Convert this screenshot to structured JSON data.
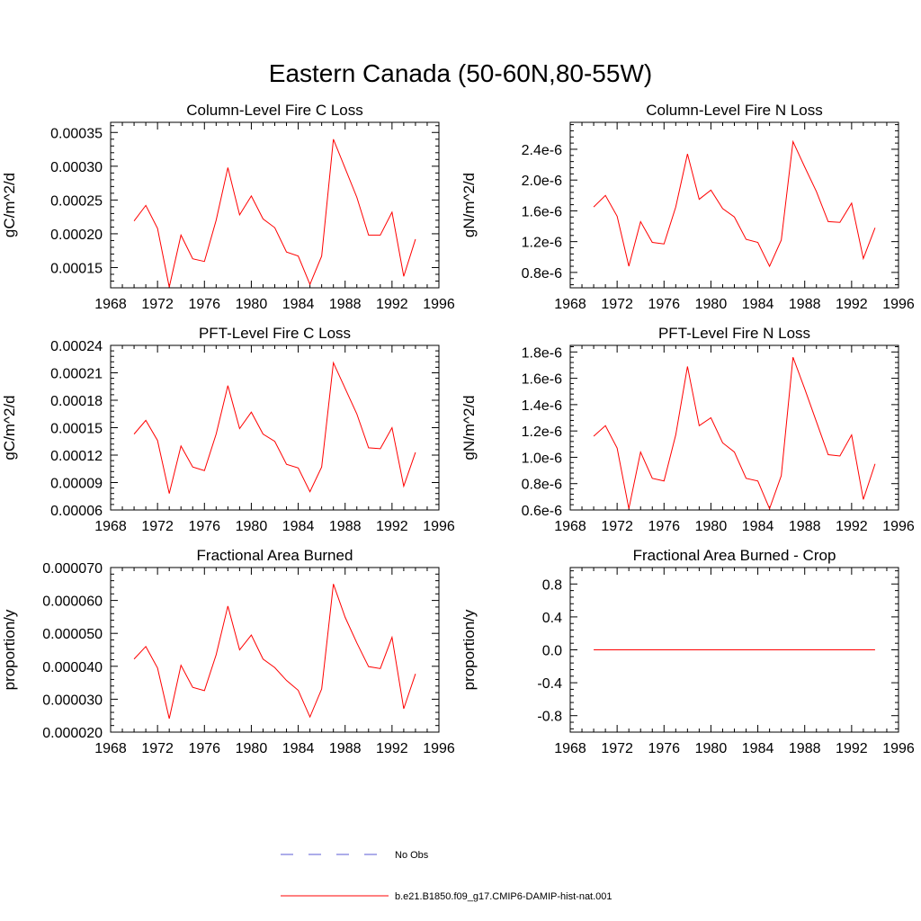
{
  "title": "Eastern Canada (50-60N,80-55W)",
  "colors": {
    "model": "#ff0000",
    "obs": "#5b5bd6",
    "axis": "#000000"
  },
  "legend": [
    {
      "label": "No Obs",
      "style": "dashed",
      "color": "#5b5bd6"
    },
    {
      "label": "b.e21.B1850.f09_g17.CMIP6-DAMIP-hist-nat.001",
      "style": "solid",
      "color": "#ff0000"
    }
  ],
  "chart_data": [
    {
      "type": "line",
      "title": "Column-Level Fire C Loss",
      "ylabel": "gC/m^2/d",
      "xlim": [
        1968,
        1996
      ],
      "xticks": [
        1968,
        1972,
        1976,
        1980,
        1984,
        1988,
        1992,
        1996
      ],
      "ylim": [
        0.00012,
        0.000365
      ],
      "yticks": [
        0.00015,
        0.0002,
        0.00025,
        0.0003,
        0.00035
      ],
      "ytick_labels": [
        "0.00015",
        "0.00020",
        "0.00025",
        "0.00030",
        "0.00035"
      ],
      "x": [
        1970,
        1971,
        1972,
        1973,
        1974,
        1975,
        1976,
        1977,
        1978,
        1979,
        1980,
        1981,
        1982,
        1983,
        1984,
        1985,
        1986,
        1987,
        1988,
        1989,
        1990,
        1991,
        1992,
        1993,
        1994
      ],
      "series": [
        {
          "name": "b.e21.B1850.f09_g17.CMIP6-DAMIP-hist-nat.001",
          "values": [
            0.000219,
            0.000242,
            0.000208,
            0.000121,
            0.000198,
            0.000163,
            0.000159,
            0.00022,
            0.000298,
            0.000228,
            0.000256,
            0.000222,
            0.000209,
            0.000173,
            0.000167,
            0.000125,
            0.000167,
            0.00034,
            0.000297,
            0.000254,
            0.000198,
            0.000198,
            0.000232,
            0.000137,
            0.000192
          ]
        }
      ]
    },
    {
      "type": "line",
      "title": "Column-Level Fire N Loss",
      "ylabel": "gN/m^2/d",
      "xlim": [
        1968,
        1996
      ],
      "xticks": [
        1968,
        1972,
        1976,
        1980,
        1984,
        1988,
        1992,
        1996
      ],
      "ylim": [
        6e-07,
        2.75e-06
      ],
      "yticks": [
        8e-07,
        1.2e-06,
        1.6e-06,
        2e-06,
        2.4e-06
      ],
      "ytick_labels": [
        "0.8e-6",
        "1.2e-6",
        "1.6e-6",
        "2.0e-6",
        "2.4e-6"
      ],
      "x": [
        1970,
        1971,
        1972,
        1973,
        1974,
        1975,
        1976,
        1977,
        1978,
        1979,
        1980,
        1981,
        1982,
        1983,
        1984,
        1985,
        1986,
        1987,
        1988,
        1989,
        1990,
        1991,
        1992,
        1993,
        1994
      ],
      "series": [
        {
          "name": "b.e21.B1850.f09_g17.CMIP6-DAMIP-hist-nat.001",
          "values": [
            1.65e-06,
            1.8e-06,
            1.53e-06,
            8.8e-07,
            1.46e-06,
            1.19e-06,
            1.17e-06,
            1.65e-06,
            2.34e-06,
            1.75e-06,
            1.87e-06,
            1.63e-06,
            1.52e-06,
            1.23e-06,
            1.19e-06,
            8.8e-07,
            1.22e-06,
            2.5e-06,
            2.17e-06,
            1.85e-06,
            1.46e-06,
            1.45e-06,
            1.7e-06,
            9.8e-07,
            1.38e-06
          ]
        }
      ]
    },
    {
      "type": "line",
      "title": "PFT-Level Fire C Loss",
      "ylabel": "gC/m^2/d",
      "xlim": [
        1968,
        1996
      ],
      "xticks": [
        1968,
        1972,
        1976,
        1980,
        1984,
        1988,
        1992,
        1996
      ],
      "ylim": [
        6e-05,
        0.00024
      ],
      "yticks": [
        6e-05,
        9e-05,
        0.00012,
        0.00015,
        0.00018,
        0.00021,
        0.00024
      ],
      "ytick_labels": [
        "0.00006",
        "0.00009",
        "0.00012",
        "0.00015",
        "0.00018",
        "0.00021",
        "0.00024"
      ],
      "x": [
        1970,
        1971,
        1972,
        1973,
        1974,
        1975,
        1976,
        1977,
        1978,
        1979,
        1980,
        1981,
        1982,
        1983,
        1984,
        1985,
        1986,
        1987,
        1988,
        1989,
        1990,
        1991,
        1992,
        1993,
        1994
      ],
      "series": [
        {
          "name": "b.e21.B1850.f09_g17.CMIP6-DAMIP-hist-nat.001",
          "values": [
            0.000143,
            0.000158,
            0.000136,
            7.8e-05,
            0.00013,
            0.000107,
            0.000103,
            0.000143,
            0.000196,
            0.000149,
            0.000167,
            0.000143,
            0.000135,
            0.00011,
            0.000106,
            8e-05,
            0.000107,
            0.000221,
            0.000193,
            0.000165,
            0.000128,
            0.000127,
            0.00015,
            8.6e-05,
            0.000123
          ]
        }
      ]
    },
    {
      "type": "line",
      "title": "PFT-Level Fire N Loss",
      "ylabel": "gN/m^2/d",
      "xlim": [
        1968,
        1996
      ],
      "xticks": [
        1968,
        1972,
        1976,
        1980,
        1984,
        1988,
        1992,
        1996
      ],
      "ylim": [
        6e-07,
        1.85e-06
      ],
      "yticks": [
        6e-07,
        8e-07,
        1e-06,
        1.2e-06,
        1.4e-06,
        1.6e-06,
        1.8e-06
      ],
      "ytick_labels": [
        "0.6e-6",
        "0.8e-6",
        "1.0e-6",
        "1.2e-6",
        "1.4e-6",
        "1.6e-6",
        "1.8e-6"
      ],
      "x": [
        1970,
        1971,
        1972,
        1973,
        1974,
        1975,
        1976,
        1977,
        1978,
        1979,
        1980,
        1981,
        1982,
        1983,
        1984,
        1985,
        1986,
        1987,
        1988,
        1989,
        1990,
        1991,
        1992,
        1993,
        1994
      ],
      "series": [
        {
          "name": "b.e21.B1850.f09_g17.CMIP6-DAMIP-hist-nat.001",
          "values": [
            1.16e-06,
            1.24e-06,
            1.07e-06,
            6.1e-07,
            1.04e-06,
            8.4e-07,
            8.2e-07,
            1.17e-06,
            1.69e-06,
            1.24e-06,
            1.3e-06,
            1.11e-06,
            1.04e-06,
            8.4e-07,
            8.2e-07,
            6.1e-07,
            8.6e-07,
            1.76e-06,
            1.52e-06,
            1.27e-06,
            1.02e-06,
            1.01e-06,
            1.17e-06,
            6.8e-07,
            9.5e-07
          ]
        }
      ]
    },
    {
      "type": "line",
      "title": "Fractional Area Burned",
      "ylabel": "proportion/y",
      "xlim": [
        1968,
        1996
      ],
      "xticks": [
        1968,
        1972,
        1976,
        1980,
        1984,
        1988,
        1992,
        1996
      ],
      "ylim": [
        2e-05,
        7e-05
      ],
      "yticks": [
        2e-05,
        3e-05,
        4e-05,
        5e-05,
        6e-05,
        7e-05
      ],
      "ytick_labels": [
        "0.000020",
        "0.000030",
        "0.000040",
        "0.000050",
        "0.000060",
        "0.000070"
      ],
      "x": [
        1970,
        1971,
        1972,
        1973,
        1974,
        1975,
        1976,
        1977,
        1978,
        1979,
        1980,
        1981,
        1982,
        1983,
        1984,
        1985,
        1986,
        1987,
        1988,
        1989,
        1990,
        1991,
        1992,
        1993,
        1994
      ],
      "series": [
        {
          "name": "b.e21.B1850.f09_g17.CMIP6-DAMIP-hist-nat.001",
          "values": [
            4.22e-05,
            4.6e-05,
            3.95e-05,
            2.41e-05,
            4.03e-05,
            3.36e-05,
            3.26e-05,
            4.35e-05,
            5.83e-05,
            4.5e-05,
            4.95e-05,
            4.22e-05,
            3.96e-05,
            3.57e-05,
            3.27e-05,
            2.46e-05,
            3.31e-05,
            6.5e-05,
            5.49e-05,
            4.71e-05,
            3.99e-05,
            3.93e-05,
            4.88e-05,
            2.71e-05,
            3.77e-05
          ]
        }
      ]
    },
    {
      "type": "line",
      "title": "Fractional Area Burned - Crop",
      "ylabel": "proportion/y",
      "xlim": [
        1968,
        1996
      ],
      "xticks": [
        1968,
        1972,
        1976,
        1980,
        1984,
        1988,
        1992,
        1996
      ],
      "ylim": [
        -1.0,
        1.0
      ],
      "yticks": [
        -0.8,
        -0.4,
        0.0,
        0.4,
        0.8
      ],
      "ytick_labels": [
        "-0.8",
        "-0.4",
        "0.0",
        "0.4",
        "0.8"
      ],
      "x": [
        1970,
        1971,
        1972,
        1973,
        1974,
        1975,
        1976,
        1977,
        1978,
        1979,
        1980,
        1981,
        1982,
        1983,
        1984,
        1985,
        1986,
        1987,
        1988,
        1989,
        1990,
        1991,
        1992,
        1993,
        1994
      ],
      "series": [
        {
          "name": "b.e21.B1850.f09_g17.CMIP6-DAMIP-hist-nat.001",
          "values": [
            0,
            0,
            0,
            0,
            0,
            0,
            0,
            0,
            0,
            0,
            0,
            0,
            0,
            0,
            0,
            0,
            0,
            0,
            0,
            0,
            0,
            0,
            0,
            0,
            0
          ]
        }
      ]
    }
  ]
}
